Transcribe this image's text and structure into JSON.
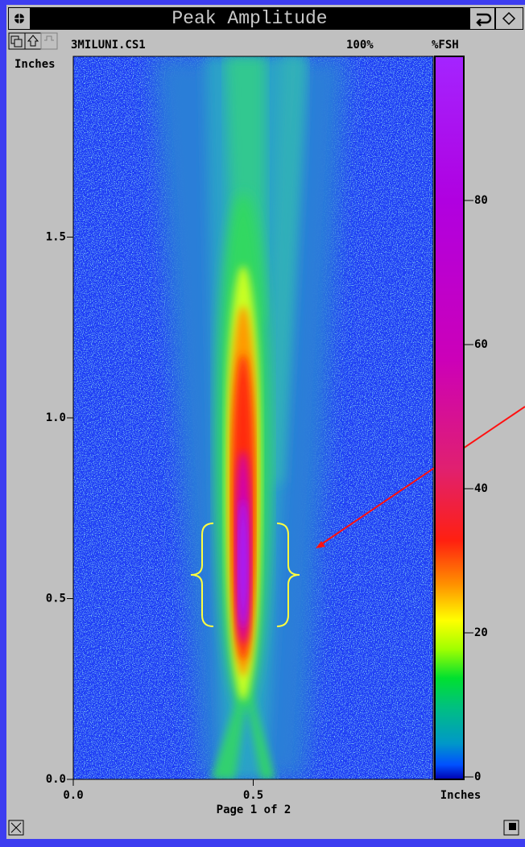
{
  "window": {
    "title": "Peak Amplitude",
    "file": "3MILUNI.CS1",
    "zoom": "100%",
    "units": "%FSH",
    "footer": "Page 1 of 2"
  },
  "plot": {
    "y_axis_label": "Inches",
    "x_axis_label": "Inches",
    "ylim": [
      0,
      2.0
    ],
    "yticks": [
      {
        "value": 0,
        "label": "0.0"
      },
      {
        "value": 0.5,
        "label": "0.5"
      },
      {
        "value": 1.0,
        "label": "1.0"
      },
      {
        "value": 1.5,
        "label": "1.5"
      }
    ],
    "xlim": [
      0,
      1.0
    ],
    "xticks": [
      {
        "value": 0,
        "label": "0.0"
      },
      {
        "value": 0.5,
        "label": "0.5"
      }
    ],
    "colorbar": {
      "lim": [
        0,
        100
      ],
      "ticks": [
        0,
        20,
        40,
        60,
        80
      ]
    }
  }
}
